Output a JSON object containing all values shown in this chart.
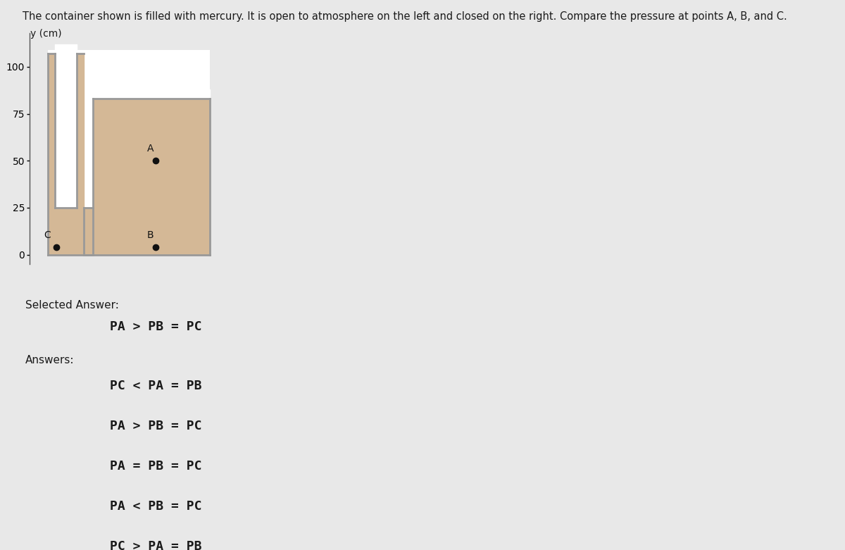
{
  "title": "The container shown is filled with mercury. It is open to atmosphere on the left and closed on the right. Compare the pressure at points A, B, and C.",
  "title_fontsize": 10.5,
  "figure_bg": "#e8e8e8",
  "mercury_color": "#d4b896",
  "wall_color": "#999999",
  "yticks": [
    0,
    25,
    50,
    75,
    100
  ],
  "selected_answer_label": "Selected Answer:",
  "selected_answer": "PA > PB = PC",
  "answers_label": "Answers:",
  "answers": [
    "PC < PA = PB",
    "PA > PB = PC",
    "PA = PB = PC",
    "PA < PB = PC",
    "PC > PA = PB"
  ],
  "point_color": "#111111",
  "point_size": 6,
  "label_fontsize": 10,
  "answer_fontsize": 13,
  "selected_fontsize": 13,
  "text_label_fontsize": 11
}
